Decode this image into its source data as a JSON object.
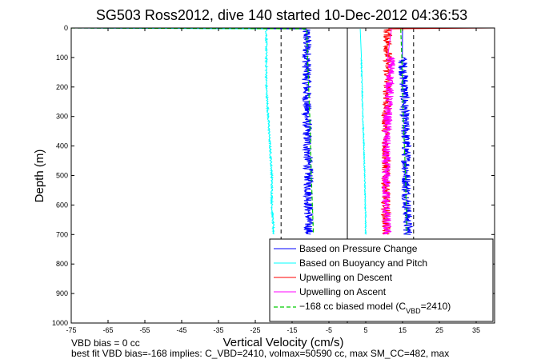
{
  "chart_data": {
    "type": "line",
    "title": "SG503 Ross2012, dive 140 started 10-Dec-2012 04:36:53",
    "xlabel": "Vertical Velocity (cm/s)",
    "ylabel": "Depth (m)",
    "xlim": [
      -75,
      40
    ],
    "ylim": [
      1000,
      0
    ],
    "x_ticks": [
      "-75",
      "-65",
      "-55",
      "-45",
      "-35",
      "-25",
      "-15",
      "-5",
      "5",
      "15",
      "25",
      "35"
    ],
    "x_tick_values": [
      -75,
      -65,
      -55,
      -45,
      -35,
      -25,
      -15,
      -5,
      5,
      15,
      25,
      35
    ],
    "y_ticks": [
      "0",
      "100",
      "200",
      "300",
      "400",
      "500",
      "600",
      "700",
      "800",
      "900",
      "1000"
    ],
    "y_tick_values": [
      0,
      100,
      200,
      300,
      400,
      500,
      600,
      700,
      800,
      900,
      1000
    ],
    "grid": false,
    "legend_position": "bottom-right",
    "legend": [
      {
        "label": "Based on Pressure Change",
        "color": "#0000ff",
        "style": "solid"
      },
      {
        "label": "Based on Buoyancy and Pitch",
        "color": "#00ffff",
        "style": "solid"
      },
      {
        "label": "Upwelling on Descent",
        "color": "#ff0000",
        "style": "solid"
      },
      {
        "label": "Upwelling on Ascent",
        "color": "#ff00ff",
        "style": "solid"
      },
      {
        "label_main": "−168 cc biased model (C",
        "label_sub": "VBD",
        "label_tail": "=2410)",
        "color": "#00cc00",
        "style": "dashed"
      }
    ],
    "series": [
      {
        "name": "Based on Pressure Change",
        "color": "#0000ff",
        "noise": 1.3,
        "points": [
          [
            -75,
            0
          ],
          [
            -11.5,
            3
          ],
          [
            -11,
            20
          ],
          [
            -11,
            100
          ],
          [
            -11,
            200
          ],
          [
            -11,
            300
          ],
          [
            -10.8,
            400
          ],
          [
            -10.5,
            500
          ],
          [
            -10.5,
            600
          ],
          [
            -10.5,
            700
          ]
        ]
      },
      {
        "name": "Based on Pressure Change",
        "color": "#0000ff",
        "noise": 1.3,
        "points": [
          [
            15,
            3
          ],
          [
            15,
            100
          ],
          [
            15.5,
            200
          ],
          [
            15.5,
            300
          ],
          [
            16,
            400
          ],
          [
            16,
            500
          ],
          [
            16.2,
            600
          ],
          [
            16.5,
            700
          ]
        ]
      },
      {
        "name": "Based on Buoyancy and Pitch",
        "color": "#00ffff",
        "noise": 0.25,
        "points": [
          [
            -75,
            0
          ],
          [
            -22,
            3
          ],
          [
            -22,
            20
          ],
          [
            -22,
            100
          ],
          [
            -22,
            200
          ],
          [
            -21.5,
            300
          ],
          [
            -21,
            400
          ],
          [
            -20.5,
            500
          ],
          [
            -20.5,
            600
          ],
          [
            -20,
            700
          ]
        ]
      },
      {
        "name": "Based on Buoyancy and Pitch",
        "color": "#00ffff",
        "noise": 0.15,
        "points": [
          [
            3.5,
            3
          ],
          [
            3.8,
            100
          ],
          [
            4,
            200
          ],
          [
            4.2,
            300
          ],
          [
            4.5,
            400
          ],
          [
            4.7,
            500
          ],
          [
            4.9,
            600
          ],
          [
            5,
            700
          ]
        ]
      },
      {
        "name": "Upwelling on Descent",
        "color": "#ff0000",
        "noise": 1.2,
        "points": [
          [
            40,
            0
          ],
          [
            11,
            3
          ],
          [
            11,
            100
          ],
          [
            11,
            200
          ],
          [
            10.5,
            300
          ],
          [
            10.5,
            400
          ],
          [
            10.5,
            500
          ],
          [
            10.5,
            600
          ],
          [
            10.5,
            700
          ]
        ]
      },
      {
        "name": "Upwelling on Ascent",
        "color": "#ff00ff",
        "noise": 1.2,
        "points": [
          [
            12,
            3
          ],
          [
            12,
            100
          ],
          [
            11.5,
            200
          ],
          [
            11,
            300
          ],
          [
            10.5,
            400
          ],
          [
            10.5,
            500
          ],
          [
            10.5,
            600
          ],
          [
            10.8,
            700
          ]
        ]
      },
      {
        "name": "−168 cc biased model",
        "color": "#00cc00",
        "dashed": true,
        "noise": 0,
        "points": [
          [
            -75,
            0
          ],
          [
            -11,
            3
          ],
          [
            -10.8,
            100
          ],
          [
            -10.5,
            200
          ],
          [
            -10.2,
            300
          ],
          [
            -10,
            400
          ],
          [
            -9.8,
            500
          ],
          [
            -9.5,
            600
          ],
          [
            -9.2,
            700
          ]
        ]
      },
      {
        "name": "−168 cc biased model",
        "color": "#00cc00",
        "dashed": true,
        "noise": 0,
        "points": [
          [
            14.5,
            3
          ],
          [
            14.8,
            100
          ],
          [
            15,
            200
          ],
          [
            15.2,
            300
          ],
          [
            15.5,
            400
          ],
          [
            15.8,
            500
          ],
          [
            16,
            600
          ],
          [
            16.2,
            700
          ]
        ]
      }
    ],
    "reference_lines": [
      {
        "x": 0,
        "style": "solid",
        "color": "#000000"
      },
      {
        "x": -18,
        "style": "dashed",
        "color": "#000000"
      },
      {
        "x": 18,
        "style": "dashed",
        "color": "#000000"
      }
    ],
    "footer_lines": [
      "VBD bias = 0 cc",
      "best fit VBD bias=-168 implies: C_VBD=2410, volmax=50590 cc, max SM_CC=482, max"
    ]
  }
}
